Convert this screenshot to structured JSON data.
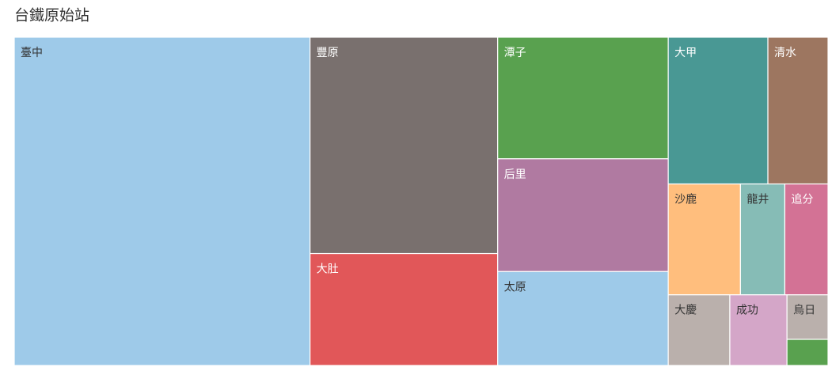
{
  "chart_data": {
    "type": "treemap",
    "title": "台鐵原始站",
    "categories": [
      "臺中",
      "豐原",
      "大肚",
      "潭子",
      "后里",
      "太原",
      "大甲",
      "清水",
      "沙鹿",
      "龍井",
      "追分",
      "大慶",
      "成功",
      "烏日",
      null
    ],
    "values": [
      1540,
      644,
      333,
      329,
      305,
      254,
      232,
      140,
      127,
      78,
      76,
      69,
      64,
      29,
      17
    ],
    "colors": [
      "#9ecae9",
      "#79706e",
      "#e15759",
      "#59a14f",
      "#b07aa1",
      "#9ecae9",
      "#499894",
      "#9d7660",
      "#ffbe7d",
      "#86bcb6",
      "#d37295",
      "#bab0ac",
      "#d4a6c8",
      "#bab0ac",
      "#59a14f"
    ]
  }
}
